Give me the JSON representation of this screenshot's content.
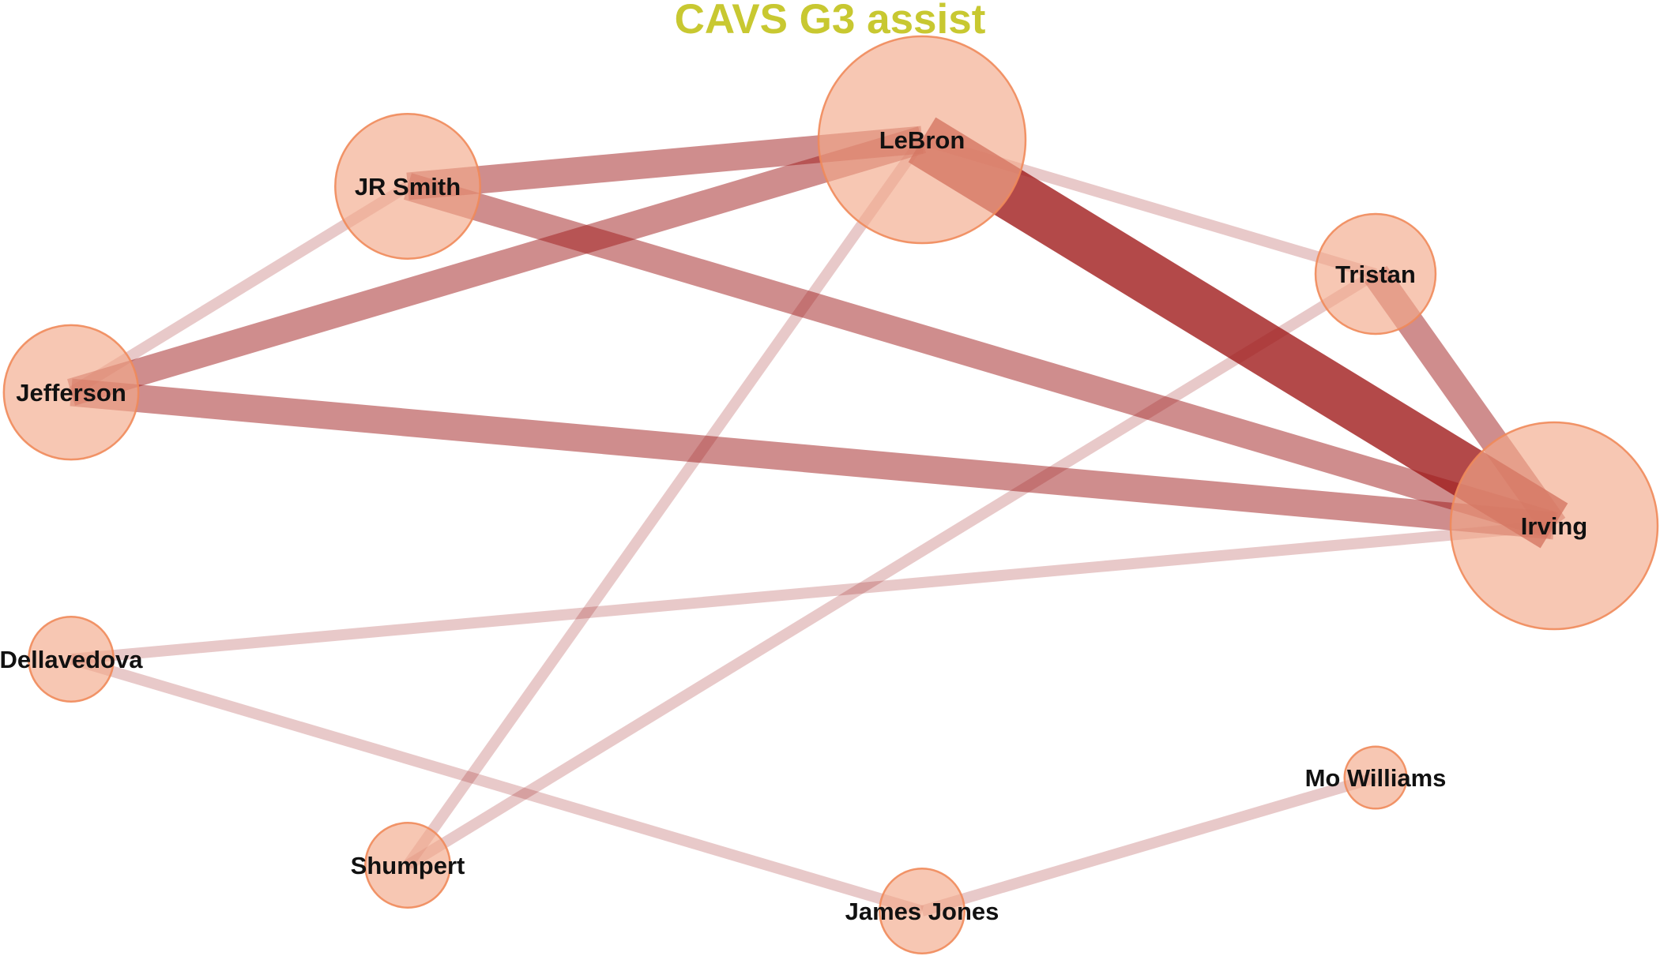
{
  "title": "CAVS G3 assist",
  "colors": {
    "title": "#c8c831",
    "node_fill": "#f2a98a",
    "node_stroke": "#f08a5a",
    "edge": "#a01c1c"
  },
  "nodes": [
    {
      "id": "lebron",
      "label": "LeBron",
      "size": 1.0
    },
    {
      "id": "irving",
      "label": "Irving",
      "size": 1.0
    },
    {
      "id": "jrsmith",
      "label": "JR Smith",
      "size": 0.7
    },
    {
      "id": "jefferson",
      "label": "Jefferson",
      "size": 0.65
    },
    {
      "id": "tristan",
      "label": "Tristan",
      "size": 0.58
    },
    {
      "id": "dellavedova",
      "label": "Dellavedova",
      "size": 0.41
    },
    {
      "id": "shumpert",
      "label": "Shumpert",
      "size": 0.41
    },
    {
      "id": "jamesjones",
      "label": "James Jones",
      "size": 0.41
    },
    {
      "id": "mowilliams",
      "label": "Mo Williams",
      "size": 0.3
    }
  ],
  "edges": [
    {
      "source": "lebron",
      "target": "irving",
      "weight": 6
    },
    {
      "source": "jrsmith",
      "target": "lebron",
      "weight": 3
    },
    {
      "source": "jefferson",
      "target": "lebron",
      "weight": 3
    },
    {
      "source": "jrsmith",
      "target": "irving",
      "weight": 3
    },
    {
      "source": "jefferson",
      "target": "irving",
      "weight": 3
    },
    {
      "source": "tristan",
      "target": "irving",
      "weight": 3
    },
    {
      "source": "lebron",
      "target": "tristan",
      "weight": 1
    },
    {
      "source": "jrsmith",
      "target": "jefferson",
      "weight": 1
    },
    {
      "source": "lebron",
      "target": "shumpert",
      "weight": 1
    },
    {
      "source": "tristan",
      "target": "shumpert",
      "weight": 1
    },
    {
      "source": "dellavedova",
      "target": "irving",
      "weight": 1
    },
    {
      "source": "dellavedova",
      "target": "jamesjones",
      "weight": 1
    },
    {
      "source": "jamesjones",
      "target": "mowilliams",
      "weight": 1
    }
  ]
}
